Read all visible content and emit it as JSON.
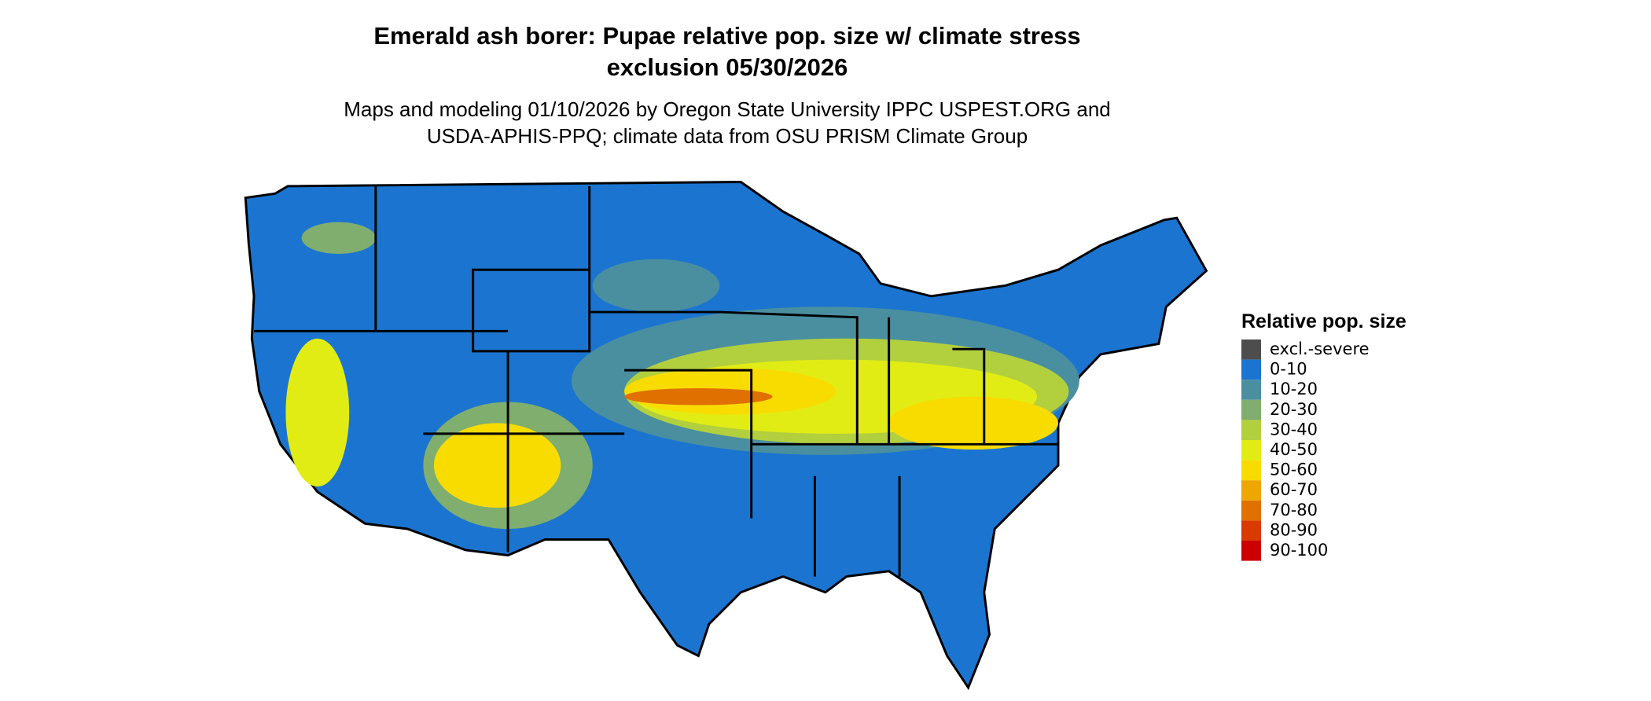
{
  "title": [
    "Emerald ash borer: Pupae relative pop. size w/ climate stress",
    "exclusion 05/30/2026"
  ],
  "subtitle": [
    "Maps and modeling 01/10/2026 by Oregon State University IPPC USPEST.ORG and",
    "USDA-APHIS-PPQ; climate data from OSU PRISM Climate Group"
  ],
  "legend": {
    "title": "Relative pop. size",
    "items": [
      {
        "label": "excl.-severe",
        "color": "#4d4d4d"
      },
      {
        "label": "0-10",
        "color": "#1b75d0"
      },
      {
        "label": "10-20",
        "color": "#4a8fa0"
      },
      {
        "label": "20-30",
        "color": "#7fae6e"
      },
      {
        "label": "30-40",
        "color": "#b2cf3e"
      },
      {
        "label": "40-50",
        "color": "#e1ec15"
      },
      {
        "label": "50-60",
        "color": "#f8dc00"
      },
      {
        "label": "60-70",
        "color": "#eea600"
      },
      {
        "label": "70-80",
        "color": "#e07000"
      },
      {
        "label": "80-90",
        "color": "#d83a00"
      },
      {
        "label": "90-100",
        "color": "#cc0000"
      }
    ]
  }
}
